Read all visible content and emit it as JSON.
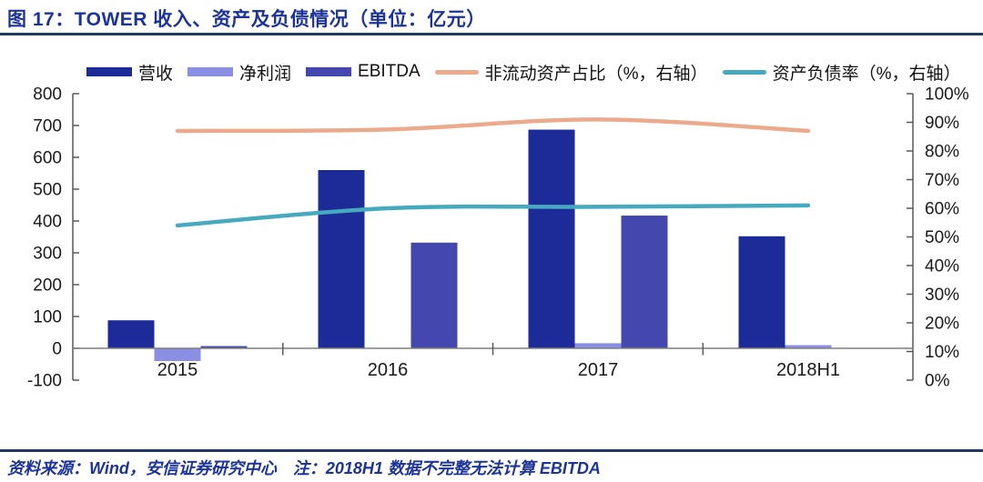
{
  "title": "图 17：TOWER 收入、资产及负债情况（单位：亿元）",
  "footer": {
    "source": "资料来源：Wind，安信证券研究中心",
    "note": "注：2018H1 数据不完整无法计算 EBITDA"
  },
  "colors": {
    "revenue": "#1d2b99",
    "net_profit": "#8a8fe4",
    "ebitda": "#4347ae",
    "non_current_ratio": "#ecaa8d",
    "debt_ratio": "#46aabf",
    "title_text": "#1c3499",
    "rule": "#1f3864",
    "axis": "#595959",
    "zero_line": "#7f7f7f",
    "tick_text": "#1a1a1a"
  },
  "legend": [
    {
      "key": "revenue",
      "label": "营收",
      "type": "bar",
      "color_key": "revenue"
    },
    {
      "key": "net-profit",
      "label": "净利润",
      "type": "bar",
      "color_key": "net_profit"
    },
    {
      "key": "ebitda",
      "label": "EBITDA",
      "type": "bar",
      "color_key": "ebitda"
    },
    {
      "key": "non-current-assets-ratio",
      "label": "非流动资产占比（%，右轴）",
      "type": "line",
      "color_key": "non_current_ratio"
    },
    {
      "key": "debt-to-asset-ratio",
      "label": "资产负债率（%，右轴）",
      "type": "line",
      "color_key": "debt_ratio"
    }
  ],
  "chart_data": {
    "type": "bar+line",
    "title": "图 17：TOWER 收入、资产及负债情况（单位：亿元）",
    "unit": "亿元",
    "categories": [
      "2015",
      "2016",
      "2017",
      "2018H1"
    ],
    "bar_series": [
      {
        "key": "revenue",
        "name": "营收",
        "axis": "left",
        "color_key": "revenue",
        "values": [
          88,
          560,
          687,
          352
        ]
      },
      {
        "key": "net-profit",
        "name": "净利润",
        "axis": "left",
        "color_key": "net_profit",
        "values": [
          -40,
          1,
          16,
          10
        ]
      },
      {
        "key": "ebitda",
        "name": "EBITDA",
        "axis": "left",
        "color_key": "ebitda",
        "values": [
          7,
          332,
          417,
          null
        ]
      }
    ],
    "line_series": [
      {
        "key": "non-current-assets-ratio",
        "name": "非流动资产占比（%，右轴）",
        "axis": "right",
        "color_key": "non_current_ratio",
        "values": [
          87,
          87.5,
          91,
          87
        ]
      },
      {
        "key": "debt-to-asset-ratio",
        "name": "资产负债率（%，右轴）",
        "axis": "right",
        "color_key": "debt_ratio",
        "values": [
          54,
          60,
          60.5,
          61
        ]
      }
    ],
    "left_axis": {
      "min": -100,
      "max": 800,
      "step": 100,
      "ticks": [
        "800",
        "700",
        "600",
        "500",
        "400",
        "300",
        "200",
        "100",
        "0",
        "-100"
      ]
    },
    "right_axis": {
      "min": 0,
      "max": 100,
      "step": 10,
      "ticks": [
        "100%",
        "90%",
        "80%",
        "70%",
        "60%",
        "50%",
        "40%",
        "30%",
        "20%",
        "10%",
        "0%"
      ]
    },
    "grid": false,
    "legend_position": "top"
  }
}
